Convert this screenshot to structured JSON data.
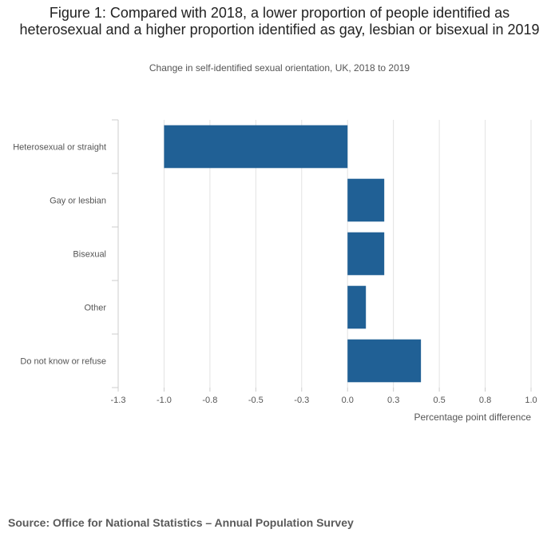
{
  "chart_data": {
    "type": "bar",
    "orientation": "horizontal",
    "title": "Figure 1: Compared with 2018, a lower proportion of people identified as heterosexual and a higher proportion identified as gay, lesbian or bisexual in 2019",
    "subtitle": "Change in self-identified sexual orientation, UK, 2018 to 2019",
    "categories": [
      "Heterosexual or straight",
      "Gay or lesbian",
      "Bisexual",
      "Other",
      "Do not know or refuse"
    ],
    "values": [
      -1.0,
      0.2,
      0.2,
      0.1,
      0.4
    ],
    "xlim": [
      -1.25,
      1.0
    ],
    "xticks": [
      -1.25,
      -1.0,
      -0.75,
      -0.5,
      -0.25,
      0.0,
      0.25,
      0.5,
      0.75,
      1.0
    ],
    "xtick_labels": [
      "-1.3",
      "-1.0",
      "-0.8",
      "-0.5",
      "-0.3",
      "0.0",
      "0.3",
      "0.5",
      "0.8",
      "1.0"
    ],
    "xlabel": "Percentage point difference",
    "ylabel": "",
    "grid": true,
    "bar_color": "#206095"
  },
  "source": "Source: Office for National Statistics – Annual Population Survey"
}
